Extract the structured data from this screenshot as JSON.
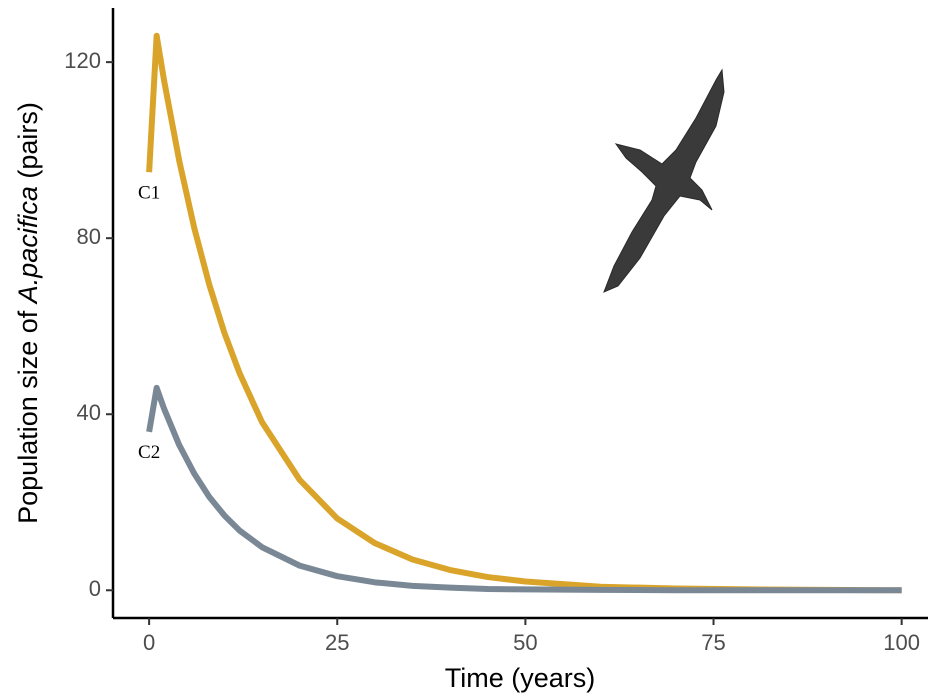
{
  "chart_data": {
    "type": "line",
    "x_label": "Time (years)",
    "y_label_parts": [
      "Population size of ",
      "A.pacifica",
      " (pairs)"
    ],
    "x": [
      0,
      1,
      2,
      4,
      6,
      8,
      10,
      12,
      15,
      20,
      25,
      30,
      35,
      40,
      45,
      50,
      60,
      70,
      80,
      90,
      100
    ],
    "series": [
      {
        "name": "C1",
        "color": "#DAA42B",
        "values": [
          95,
          126,
          115.7,
          97.6,
          82.3,
          69.4,
          58.5,
          49.4,
          38.2,
          25.1,
          16.3,
          10.7,
          7.0,
          4.6,
          3.0,
          2.0,
          0.8,
          0.4,
          0.2,
          0.1,
          0
        ]
      },
      {
        "name": "C2",
        "color": "#7A8896",
        "values": [
          36,
          46,
          41.2,
          33.0,
          26.5,
          21.2,
          17.0,
          13.6,
          9.8,
          5.6,
          3.2,
          1.8,
          1.0,
          0.6,
          0.3,
          0.2,
          0.1,
          0,
          0,
          0,
          0
        ]
      }
    ],
    "annotations": [
      {
        "text": "C1",
        "x": 0,
        "y": 90
      },
      {
        "text": "C2",
        "x": 0,
        "y": 31
      }
    ],
    "xlim": [
      -4.8,
      103.5
    ],
    "ylim": [
      -6.3,
      132.3
    ],
    "xticks": [
      0,
      25,
      50,
      75,
      100
    ],
    "yticks": [
      0,
      40,
      80,
      120
    ],
    "grid": false
  }
}
